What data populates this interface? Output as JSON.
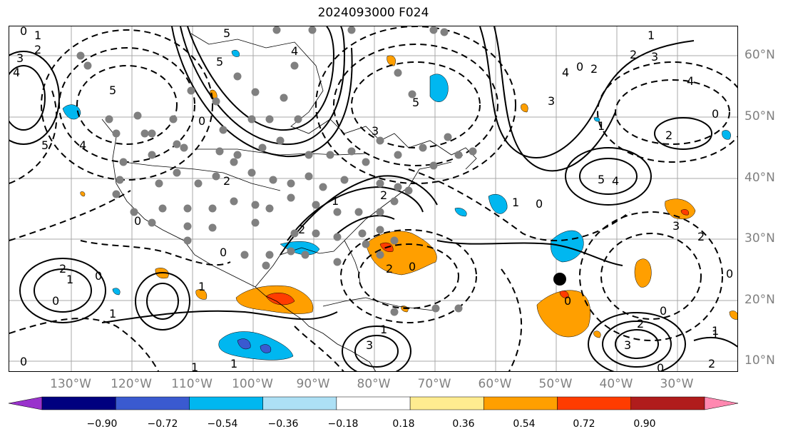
{
  "title": "2024093000 F024",
  "lat_labels": [
    "60°N",
    "50°N",
    "40°N",
    "30°N",
    "20°N",
    "10°N"
  ],
  "lon_labels": [
    "130°W",
    "120°W",
    "110°W",
    "100°W",
    "90°W",
    "80°W",
    "70°W",
    "60°W",
    "50°W",
    "40°W",
    "30°W"
  ],
  "colorbar": {
    "colors": [
      "#9932cc",
      "#00007f",
      "#3a5ad0",
      "#00b7f0",
      "#ade0f5",
      "#ffffff",
      "#ffec90",
      "#ff9f00",
      "#ff3c00",
      "#b01c1c",
      "#ff88b0"
    ],
    "labels": [
      "−0.90",
      "−0.72",
      "−0.54",
      "−0.36",
      "−0.18",
      "0.18",
      "0.36",
      "0.54",
      "0.72",
      "0.90"
    ]
  },
  "contour_labels": {
    "nw_a": "0",
    "nw_b": "1",
    "nw_c": "2",
    "nw_d": "3",
    "nw_e": "4",
    "nw_f": "5",
    "nw_g": "5",
    "canada_a": "5",
    "canada_b": "4",
    "labrador": "5",
    "quebec": "3",
    "atl_a": "4",
    "atl_b": "3",
    "atl_c": "2",
    "atl_d": "1",
    "atl_e": "0",
    "east_a": "1",
    "east_b": "2",
    "east_c": "3",
    "east_d": "4",
    "east_e": "0",
    "east_f": "2",
    "mid_a": "5",
    "mid_b": "4",
    "mid_c": "0",
    "mid_d": "1",
    "mid_e": "0",
    "west_a": "5",
    "west_b": "4",
    "west_c": "0",
    "us_a": "2",
    "us_b": "2",
    "fl_a": "2",
    "fl_b": "1",
    "pac_a": "0",
    "pac_b": "2",
    "pac_c": "0",
    "pac_d": "1",
    "pac_e": "0",
    "pac_f": "1",
    "gulf_a": "1",
    "gulf_b": "0",
    "carib_a": "0",
    "carib_b": "1",
    "carib_c": "3",
    "carib_d": "2",
    "eatl_a": "3",
    "eatl_b": "2",
    "eatl_c": "0",
    "eatl_d": "0",
    "eatl_e": "1",
    "eatl_f": "3",
    "eatl_g": "2",
    "eatl_h": "0",
    "eatl_i": "2",
    "eatl_j": "1",
    "sw_a": "0",
    "sw_b": "1",
    "nw_h": "1"
  }
}
